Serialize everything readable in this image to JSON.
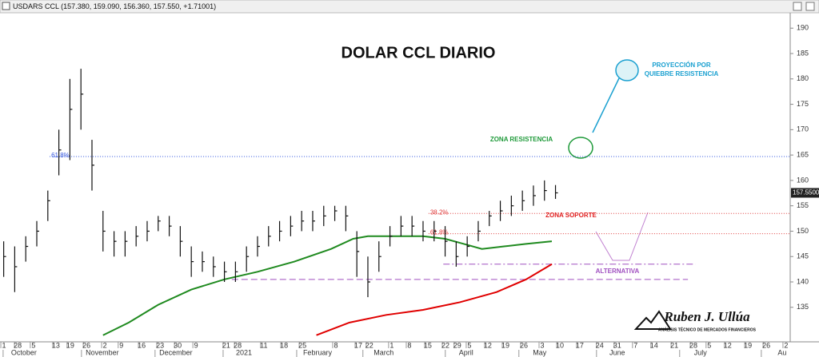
{
  "header": "USDARS CCL (157.380, 159.090, 156.360, 157.550, +1.71001)",
  "chart_data": {
    "type": "ohlc",
    "title": "DOLAR CCL DIARIO",
    "color": "#111111",
    "ylim": [
      128.2,
      193.5
    ],
    "yticks": [
      135,
      140,
      145,
      150,
      155,
      160,
      165,
      170,
      175,
      180,
      185,
      190
    ],
    "xlim": [
      0,
      214.8
    ],
    "xticks": [
      {
        "value": 1.1,
        "label": "1"
      },
      {
        "value": 4.8,
        "label": "28"
      },
      {
        "value": 9.1,
        "label": "5"
      },
      {
        "value": 15.2,
        "label": "13"
      },
      {
        "value": 19.1,
        "label": "19"
      },
      {
        "value": 23.5,
        "label": "26"
      },
      {
        "value": 28.5,
        "label": "2"
      },
      {
        "value": 33,
        "label": "9"
      },
      {
        "value": 38.5,
        "label": "16"
      },
      {
        "value": 43.5,
        "label": "23"
      },
      {
        "value": 48.3,
        "label": "30"
      },
      {
        "value": 53.3,
        "label": "9"
      },
      {
        "value": 61.5,
        "label": "21"
      },
      {
        "value": 64.6,
        "label": "28"
      },
      {
        "value": 71.7,
        "label": "11"
      },
      {
        "value": 77.2,
        "label": "18"
      },
      {
        "value": 82.2,
        "label": "25"
      },
      {
        "value": 91.3,
        "label": "8"
      },
      {
        "value": 97.4,
        "label": "17"
      },
      {
        "value": 100.4,
        "label": "22"
      },
      {
        "value": 106.5,
        "label": "1"
      },
      {
        "value": 111.3,
        "label": "8"
      },
      {
        "value": 116.3,
        "label": "15"
      },
      {
        "value": 121.1,
        "label": "22"
      },
      {
        "value": 124.3,
        "label": "29"
      },
      {
        "value": 127.6,
        "label": "5"
      },
      {
        "value": 132.6,
        "label": "12"
      },
      {
        "value": 137.4,
        "label": "19"
      },
      {
        "value": 142.4,
        "label": "26"
      },
      {
        "value": 147.4,
        "label": "3"
      },
      {
        "value": 152.2,
        "label": "10"
      },
      {
        "value": 157.6,
        "label": "17"
      },
      {
        "value": 163,
        "label": "24"
      },
      {
        "value": 167.8,
        "label": "31"
      },
      {
        "value": 172.8,
        "label": "7"
      },
      {
        "value": 177.8,
        "label": "14"
      },
      {
        "value": 183.3,
        "label": "21"
      },
      {
        "value": 188.5,
        "label": "28"
      },
      {
        "value": 192.8,
        "label": "5"
      },
      {
        "value": 197.8,
        "label": "12"
      },
      {
        "value": 203.3,
        "label": "19"
      },
      {
        "value": 208.3,
        "label": "26"
      },
      {
        "value": 213.7,
        "label": "2"
      }
    ],
    "month_ticks": [
      {
        "value": 6.5,
        "label": "October"
      },
      {
        "value": 27.8,
        "label": "November"
      },
      {
        "value": 47.8,
        "label": "December"
      },
      {
        "value": 66.3,
        "label": "2021"
      },
      {
        "value": 86.3,
        "label": "February"
      },
      {
        "value": 104.3,
        "label": "March"
      },
      {
        "value": 126.7,
        "label": "April"
      },
      {
        "value": 146.7,
        "label": "May"
      },
      {
        "value": 167.8,
        "label": "June"
      },
      {
        "value": 190.4,
        "label": "July"
      },
      {
        "value": 212.6,
        "label": "Au"
      }
    ],
    "bars": {
      "x": [
        1,
        4,
        7,
        10,
        13,
        16,
        19,
        22,
        25,
        28,
        31,
        34,
        37,
        40,
        43,
        46,
        49,
        52,
        55,
        58,
        61,
        64,
        67,
        70,
        73,
        76,
        79,
        82,
        85,
        88,
        91,
        94,
        97,
        100,
        103,
        106,
        109,
        112,
        115,
        118,
        121,
        124,
        127,
        130,
        133,
        136,
        139,
        142,
        145,
        148,
        151
      ],
      "high": [
        148,
        147,
        149,
        152,
        158,
        170,
        180,
        182,
        168,
        154,
        150,
        150,
        151,
        152,
        153,
        153,
        151,
        147,
        146,
        145,
        144,
        144,
        147,
        149,
        151,
        152,
        153,
        154,
        154,
        155,
        155,
        155,
        150,
        145,
        148,
        151,
        153,
        153,
        152,
        152,
        151,
        148,
        149,
        152,
        154,
        156,
        157,
        158,
        159,
        160,
        159.09
      ],
      "low": [
        141,
        138,
        144,
        147,
        152,
        161,
        164,
        170,
        158,
        146,
        145,
        145,
        147,
        148,
        150,
        149,
        145,
        141,
        142,
        141,
        140,
        140,
        142,
        145,
        147,
        148,
        149,
        150,
        150,
        151,
        152,
        150,
        141,
        137,
        142,
        147,
        149,
        149,
        148,
        148,
        145,
        143,
        145,
        148,
        151,
        152,
        153,
        154,
        155,
        156,
        156.36
      ],
      "close": [
        145,
        143,
        147,
        150,
        156,
        166,
        174,
        177,
        163,
        150,
        148,
        148,
        149,
        150,
        152,
        151,
        148,
        144,
        144,
        143,
        142,
        142,
        145,
        147,
        149,
        150,
        151,
        152,
        152,
        153,
        154,
        153,
        146,
        140,
        145,
        149,
        151,
        151,
        150,
        150,
        148,
        145,
        147,
        150,
        153,
        154,
        155,
        156,
        157,
        158,
        157.55
      ]
    },
    "last_price_label": "157.5500",
    "overlays": [
      {
        "color": "#1f8a1f",
        "x": [
          28,
          35,
          43,
          52,
          61,
          70,
          80,
          90,
          96,
          100,
          108,
          115,
          121,
          126,
          131,
          137,
          143,
          150
        ],
        "values": [
          129.5,
          132,
          135.5,
          138.5,
          140.5,
          142,
          144,
          146.5,
          148.5,
          149,
          149,
          149,
          148.5,
          147.5,
          146.5,
          147,
          147.5,
          148
        ]
      },
      {
        "color": "#e00000",
        "x": [
          86,
          95,
          105,
          115,
          125,
          135,
          143,
          150
        ],
        "values": [
          129.5,
          132,
          133.5,
          134.5,
          136,
          138,
          140.5,
          143.5
        ]
      }
    ],
    "levels": [
      {
        "value": 164.7,
        "xrange": [
          13.5,
          214.8
        ],
        "color": "#3355dd",
        "dash": "1,2",
        "label": "61.8%"
      },
      {
        "value": 153.5,
        "xrange": [
          116.5,
          214.8
        ],
        "color": "#e04040",
        "dash": "1,2",
        "label": "38.2%"
      },
      {
        "value": 149.5,
        "xrange": [
          116.5,
          214.8
        ],
        "color": "#e04040",
        "dash": "1,2",
        "label": "61.8%"
      },
      {
        "value": 143.5,
        "xrange": [
          120.5,
          189
        ],
        "color": "#a050c0",
        "dash": "8,3,2,3"
      },
      {
        "value": 140.5,
        "xrange": [
          63,
          187
        ],
        "color": "#a050c0",
        "dash": "8,4"
      }
    ],
    "annotations": {
      "resistance": "ZONA RESISTENCIA",
      "projection_1": "PROYECCIÓN POR",
      "projection_2": "QUIEBRE RESISTENCIA",
      "support": "ZONA SOPORTE",
      "alternative": "ALTERNATIVA"
    }
  },
  "logo": {
    "name": "Ruben J. Ullúa",
    "tagline": "ANÁLISIS TÉCNICO DE MERCADOS FINANCIEROS"
  }
}
